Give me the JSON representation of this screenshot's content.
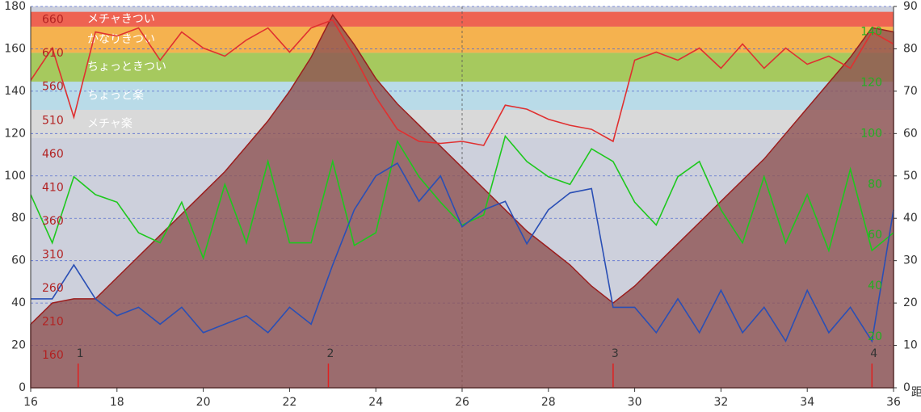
{
  "chart_data": {
    "type": "line",
    "x_label": "距",
    "x": [
      16,
      16.5,
      17,
      17.5,
      18,
      18.5,
      19,
      19.5,
      20,
      20.5,
      21,
      21.5,
      22,
      22.5,
      23,
      23.5,
      24,
      24.5,
      25,
      25.5,
      26,
      26.5,
      27,
      27.5,
      28,
      28.5,
      29,
      29.5,
      30,
      30.5,
      31,
      31.5,
      32,
      32.5,
      33,
      33.5,
      34,
      34.5,
      35,
      35.5,
      36
    ],
    "xlim": [
      16,
      36
    ],
    "xticks": [
      16,
      18,
      20,
      22,
      24,
      26,
      28,
      30,
      32,
      34,
      36
    ],
    "xgrid": [
      26
    ],
    "ylim": [
      0,
      180
    ],
    "yticks": [
      0,
      20,
      40,
      60,
      80,
      100,
      120,
      140,
      160,
      180
    ],
    "grid": true,
    "y2lim": [
      0,
      90
    ],
    "y2ticks": [
      0,
      10,
      20,
      30,
      40,
      50,
      60,
      70,
      80,
      90
    ],
    "y3lim": [
      112,
      680
    ],
    "y3ticks": [
      160,
      210,
      260,
      310,
      360,
      410,
      460,
      510,
      560,
      610,
      660
    ],
    "y3color": "#b22222",
    "y4lim": [
      0,
      150
    ],
    "y4ticks": [
      20,
      40,
      60,
      80,
      100,
      120,
      140
    ],
    "y4color": "#22b022",
    "zones": [
      {
        "label": "メチャ楽",
        "from": 484,
        "to": 526,
        "color": "#d9d9d9"
      },
      {
        "label": "ちょっと楽",
        "from": 526,
        "to": 568,
        "color": "#b9dbe8"
      },
      {
        "label": "ちょっときつい",
        "from": 568,
        "to": 611,
        "color": "#a6c95e"
      },
      {
        "label": "かなりきつい",
        "from": 611,
        "to": 650,
        "color": "#f5b24f"
      },
      {
        "label": "メチャきつい",
        "from": 650,
        "to": 672,
        "color": "#ee6352"
      }
    ],
    "markers": [
      {
        "x": 17.1,
        "label": "1"
      },
      {
        "x": 22.9,
        "label": "2"
      },
      {
        "x": 29.5,
        "label": "3"
      },
      {
        "x": 35.5,
        "label": "4"
      }
    ],
    "series": [
      {
        "style": "area",
        "axis": "y2",
        "color": "#8f5252",
        "values": [
          15,
          20,
          21,
          21,
          26,
          31,
          36,
          41,
          46,
          51,
          57,
          63,
          70,
          78,
          88,
          81,
          73,
          67,
          62,
          57,
          52,
          47,
          42,
          37,
          33,
          29,
          24,
          20,
          24,
          29,
          34,
          39,
          44,
          49,
          54,
          60,
          66,
          72,
          78,
          85,
          84
        ]
      },
      {
        "style": "line",
        "axis": "y3",
        "color": "#e03030",
        "values": [
          570,
          618,
          515,
          642,
          636,
          648,
          600,
          642,
          618,
          606,
          630,
          648,
          612,
          648,
          660,
          606,
          545,
          497,
          479,
          476,
          479,
          473,
          533,
          527,
          512,
          503,
          497,
          479,
          600,
          612,
          600,
          618,
          588,
          624,
          588,
          618,
          594,
          606,
          588,
          642,
          624
        ]
      },
      {
        "style": "line",
        "axis": "y4",
        "color": "#1ec81e",
        "values": [
          76,
          57,
          83,
          76,
          73,
          61,
          57,
          73,
          51,
          80,
          57,
          89,
          57,
          57,
          89,
          56,
          61,
          97,
          83,
          73,
          64,
          68,
          99,
          89,
          83,
          80,
          94,
          89,
          73,
          64,
          83,
          89,
          70,
          57,
          83,
          57,
          76,
          54,
          86,
          54,
          61
        ]
      },
      {
        "style": "line",
        "axis": "y2",
        "color": "#2a4fb5",
        "values": [
          21,
          21,
          29,
          21,
          17,
          19,
          15,
          19,
          13,
          15,
          17,
          13,
          19,
          15,
          29,
          42,
          50,
          53,
          44,
          50,
          38,
          42,
          44,
          34,
          42,
          46,
          47,
          19,
          19,
          13,
          21,
          13,
          23,
          13,
          19,
          11,
          23,
          13,
          19,
          11,
          42
        ]
      }
    ]
  }
}
